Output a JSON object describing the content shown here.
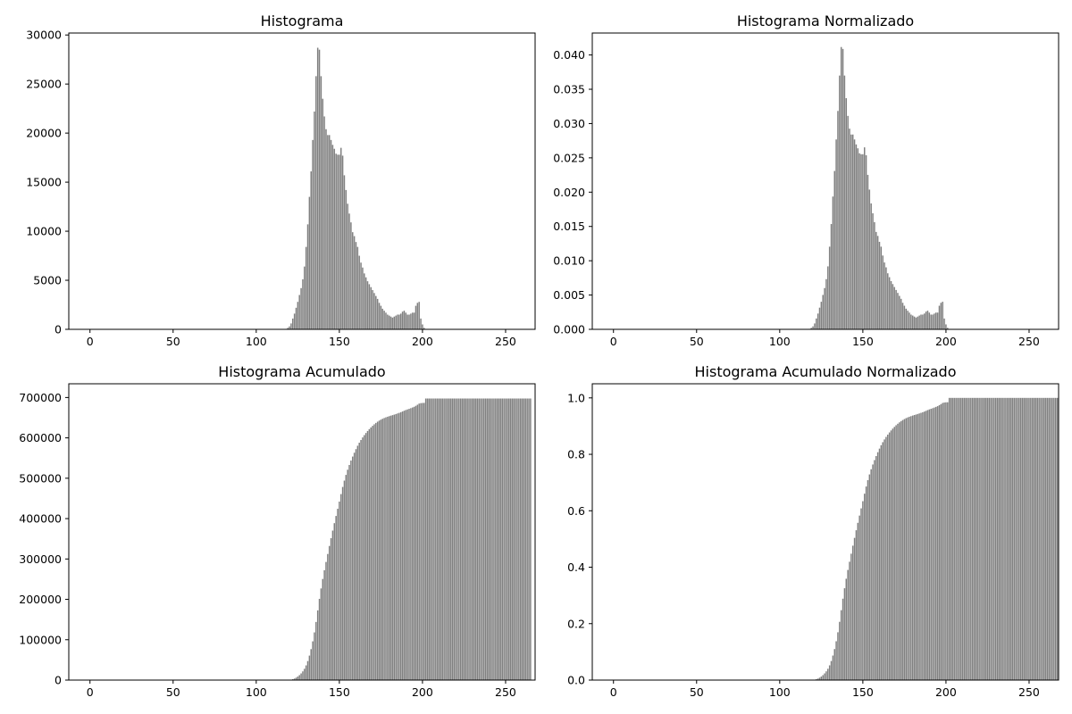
{
  "figure": {
    "bar_color": "#808080",
    "axes_color": "#000000",
    "background": "#ffffff"
  },
  "chart_data": [
    {
      "type": "bar",
      "title": "Histograma",
      "x_start": 0,
      "bar_width": 0.8,
      "xlim": [
        -12.75,
        267.75
      ],
      "ylim": [
        0,
        30200
      ],
      "x_ticks": [
        0,
        50,
        100,
        150,
        200,
        250
      ],
      "x_tick_labels": [
        "0",
        "50",
        "100",
        "150",
        "200",
        "250"
      ],
      "y_ticks": [
        0,
        5000,
        10000,
        15000,
        20000,
        25000,
        30000
      ],
      "y_tick_labels": [
        "0",
        "5000",
        "10000",
        "15000",
        "20000",
        "25000",
        "30000"
      ],
      "grid": false,
      "values": [
        0,
        0,
        0,
        0,
        0,
        0,
        0,
        0,
        0,
        0,
        0,
        0,
        0,
        0,
        0,
        0,
        0,
        0,
        0,
        0,
        0,
        0,
        0,
        0,
        0,
        0,
        0,
        0,
        0,
        0,
        0,
        0,
        0,
        0,
        0,
        0,
        0,
        0,
        0,
        0,
        0,
        0,
        0,
        0,
        0,
        0,
        0,
        0,
        0,
        0,
        0,
        0,
        0,
        0,
        0,
        0,
        0,
        0,
        0,
        0,
        0,
        0,
        0,
        0,
        0,
        0,
        0,
        0,
        0,
        0,
        0,
        0,
        0,
        0,
        0,
        0,
        0,
        0,
        0,
        0,
        0,
        0,
        0,
        0,
        0,
        0,
        0,
        0,
        0,
        0,
        0,
        0,
        0,
        0,
        0,
        0,
        0,
        0,
        0,
        0,
        0,
        0,
        0,
        0,
        0,
        0,
        0,
        0,
        0,
        0,
        0,
        0,
        0,
        0,
        0,
        0,
        0,
        0,
        50,
        150,
        300,
        600,
        1100,
        1600,
        2200,
        2800,
        3500,
        4200,
        5100,
        6400,
        8400,
        10700,
        13500,
        16100,
        19300,
        22200,
        25800,
        28700,
        28500,
        25800,
        23500,
        21700,
        20400,
        19800,
        19800,
        19300,
        18800,
        18400,
        17900,
        17800,
        17800,
        18500,
        17700,
        15700,
        14200,
        12800,
        11800,
        10900,
        9900,
        9500,
        8900,
        8400,
        7500,
        6800,
        6300,
        5700,
        5300,
        4900,
        4600,
        4300,
        4000,
        3700,
        3400,
        3100,
        2700,
        2400,
        2100,
        1900,
        1700,
        1500,
        1400,
        1300,
        1200,
        1300,
        1400,
        1500,
        1500,
        1600,
        1800,
        1900,
        1700,
        1500,
        1500,
        1600,
        1700,
        1700,
        2400,
        2700,
        2800,
        1100,
        500,
        150,
        0,
        0,
        0,
        0,
        0,
        0,
        0,
        0,
        0,
        0,
        0,
        0,
        0,
        0,
        0,
        0,
        0,
        0,
        0,
        0,
        0,
        0,
        0,
        0,
        0,
        0,
        0,
        0,
        0,
        0,
        0,
        0,
        0,
        0,
        0,
        0,
        0,
        0,
        0,
        0,
        0,
        0,
        0,
        0,
        0,
        0,
        0,
        0,
        0,
        0,
        0,
        0,
        0,
        0,
        0,
        0,
        0,
        0,
        0,
        0,
        0,
        0,
        0,
        0,
        0,
        0,
        0,
        0,
        0,
        0,
        0,
        0
      ]
    },
    {
      "type": "bar",
      "title": "Histograma Normalizado",
      "x_start": 0,
      "bar_width": 0.8,
      "xlim": [
        -12.75,
        267.75
      ],
      "ylim": [
        0,
        0.0432
      ],
      "x_ticks": [
        0,
        50,
        100,
        150,
        200,
        250
      ],
      "x_tick_labels": [
        "0",
        "50",
        "100",
        "150",
        "200",
        "250"
      ],
      "y_ticks": [
        0,
        0.005,
        0.01,
        0.015,
        0.02,
        0.025,
        0.03,
        0.035,
        0.04
      ],
      "y_tick_labels": [
        "0.000",
        "0.005",
        "0.010",
        "0.015",
        "0.020",
        "0.025",
        "0.030",
        "0.035",
        "0.040"
      ],
      "grid": false,
      "values": [
        0,
        0,
        0,
        0,
        0,
        0,
        0,
        0,
        0,
        0,
        0,
        0,
        0,
        0,
        0,
        0,
        0,
        0,
        0,
        0,
        0,
        0,
        0,
        0,
        0,
        0,
        0,
        0,
        0,
        0,
        0,
        0,
        0,
        0,
        0,
        0,
        0,
        0,
        0,
        0,
        0,
        0,
        0,
        0,
        0,
        0,
        0,
        0,
        0,
        0,
        0,
        0,
        0,
        0,
        0,
        0,
        0,
        0,
        0,
        0,
        0,
        0,
        0,
        0,
        0,
        0,
        0,
        0,
        0,
        0,
        0,
        0,
        0,
        0,
        0,
        0,
        0,
        0,
        0,
        0,
        0,
        0,
        0,
        0,
        0,
        0,
        0,
        0,
        0,
        0,
        0,
        0,
        0,
        0,
        0,
        0,
        0,
        0,
        0,
        0,
        0,
        0,
        0,
        0,
        0,
        0,
        0,
        0,
        0,
        0,
        0,
        0,
        0,
        0,
        0,
        0,
        0,
        0,
        7e-05,
        0.00021,
        0.00043,
        0.00086,
        0.00158,
        0.0023,
        0.00316,
        0.00402,
        0.00502,
        0.00602,
        0.00732,
        0.00918,
        0.01205,
        0.01535,
        0.01936,
        0.02309,
        0.02768,
        0.03184,
        0.037,
        0.04116,
        0.04088,
        0.037,
        0.0337,
        0.03112,
        0.02926,
        0.0284,
        0.0284,
        0.02768,
        0.02696,
        0.02639,
        0.02567,
        0.02553,
        0.02553,
        0.02653,
        0.02538,
        0.02252,
        0.02037,
        0.01836,
        0.01692,
        0.01563,
        0.0142,
        0.01362,
        0.01276,
        0.01205,
        0.01076,
        0.00975,
        0.00904,
        0.00817,
        0.0076,
        0.00703,
        0.0066,
        0.00617,
        0.00574,
        0.00531,
        0.00488,
        0.00445,
        0.00387,
        0.00344,
        0.00301,
        0.00272,
        0.00244,
        0.00215,
        0.00201,
        0.00186,
        0.00172,
        0.00186,
        0.00201,
        0.00215,
        0.00215,
        0.0023,
        0.00258,
        0.00272,
        0.00244,
        0.00215,
        0.00215,
        0.0023,
        0.00244,
        0.00244,
        0.00344,
        0.00387,
        0.00402,
        0.00158,
        0.00072,
        0.00022,
        0,
        0,
        0,
        0,
        0,
        0,
        0,
        0,
        0,
        0,
        0,
        0,
        0,
        0,
        0,
        0,
        0,
        0,
        0,
        0,
        0,
        0,
        0,
        0,
        0,
        0,
        0,
        0,
        0,
        0,
        0,
        0,
        0,
        0,
        0,
        0,
        0,
        0,
        0,
        0,
        0,
        0,
        0,
        0,
        0,
        0,
        0,
        0,
        0,
        0,
        0,
        0,
        0,
        0,
        0,
        0,
        0,
        0,
        0,
        0,
        0,
        0,
        0,
        0,
        0,
        0,
        0,
        0,
        0,
        0,
        0,
        0,
        0
      ]
    },
    {
      "type": "bar",
      "title": "Histograma Acumulado",
      "x_start": 0,
      "bar_width": 0.8,
      "xlim": [
        -12.75,
        267.75
      ],
      "ylim": [
        0,
        734000
      ],
      "x_ticks": [
        0,
        50,
        100,
        150,
        200,
        250
      ],
      "x_tick_labels": [
        "0",
        "50",
        "100",
        "150",
        "200",
        "250"
      ],
      "y_ticks": [
        0,
        100000,
        200000,
        300000,
        400000,
        500000,
        600000,
        700000
      ],
      "y_tick_labels": [
        "0",
        "100000",
        "200000",
        "300000",
        "400000",
        "500000",
        "600000",
        "700000"
      ],
      "grid": false,
      "values": [
        0,
        0,
        0,
        0,
        0,
        0,
        0,
        0,
        0,
        0,
        0,
        0,
        0,
        0,
        0,
        0,
        0,
        0,
        0,
        0,
        0,
        0,
        0,
        0,
        0,
        0,
        0,
        0,
        0,
        0,
        0,
        0,
        0,
        0,
        0,
        0,
        0,
        0,
        0,
        0,
        0,
        0,
        0,
        0,
        0,
        0,
        0,
        0,
        0,
        0,
        0,
        0,
        0,
        0,
        0,
        0,
        0,
        0,
        0,
        0,
        0,
        0,
        0,
        0,
        0,
        0,
        0,
        0,
        0,
        0,
        0,
        0,
        0,
        0,
        0,
        0,
        0,
        0,
        0,
        0,
        0,
        0,
        0,
        0,
        0,
        0,
        0,
        0,
        0,
        0,
        0,
        0,
        0,
        0,
        0,
        0,
        0,
        0,
        0,
        0,
        0,
        0,
        0,
        0,
        0,
        0,
        0,
        0,
        0,
        0,
        0,
        0,
        0,
        0,
        0,
        0,
        0,
        0,
        50,
        200,
        500,
        1100,
        2200,
        3800,
        6000,
        8800,
        12300,
        16500,
        21600,
        28000,
        36400,
        47100,
        60600,
        76700,
        96000,
        118200,
        144000,
        172700,
        201200,
        227000,
        250500,
        272200,
        292600,
        312400,
        332200,
        351500,
        370300,
        388700,
        406600,
        424400,
        442200,
        460700,
        478400,
        494100,
        508300,
        521100,
        532900,
        543800,
        553700,
        563200,
        572100,
        580500,
        588000,
        594800,
        601100,
        606800,
        612100,
        617000,
        621600,
        625900,
        629900,
        633600,
        637000,
        640100,
        642800,
        645200,
        647300,
        649200,
        650900,
        652400,
        653800,
        655100,
        656300,
        657600,
        659000,
        660500,
        662000,
        663600,
        665400,
        667300,
        669000,
        670500,
        672000,
        673600,
        675300,
        677000,
        679400,
        682100,
        684900,
        686000,
        686500,
        686650,
        697500,
        697500,
        697500,
        697500,
        697500,
        697500,
        697500,
        697500,
        697500,
        697500,
        697500,
        697500,
        697500,
        697500,
        697500,
        697500,
        697500,
        697500,
        697500,
        697500,
        697500,
        697500,
        697500,
        697500,
        697500,
        697500,
        697500,
        697500,
        697500,
        697500,
        697500,
        697500,
        697500,
        697500,
        697500,
        697500,
        697500,
        697500,
        697500,
        697500,
        697500,
        697500,
        697500,
        697500,
        697500,
        697500,
        697500,
        697500,
        697500,
        697500,
        697500,
        697500,
        697500,
        697500,
        697500,
        697500,
        697500,
        697500,
        697500,
        697500,
        697500,
        697500,
        697500,
        697500
      ]
    },
    {
      "type": "bar",
      "title": "Histograma Acumulado Normalizado",
      "x_start": 0,
      "bar_width": 0.8,
      "xlim": [
        -12.75,
        267.75
      ],
      "ylim": [
        0,
        1.05
      ],
      "x_ticks": [
        0,
        50,
        100,
        150,
        200,
        250
      ],
      "x_tick_labels": [
        "0",
        "50",
        "100",
        "150",
        "200",
        "250"
      ],
      "y_ticks": [
        0,
        0.2,
        0.4,
        0.6,
        0.8,
        1.0
      ],
      "y_tick_labels": [
        "0.0",
        "0.2",
        "0.4",
        "0.6",
        "0.8",
        "1.0"
      ],
      "grid": false,
      "values": [
        0,
        0,
        0,
        0,
        0,
        0,
        0,
        0,
        0,
        0,
        0,
        0,
        0,
        0,
        0,
        0,
        0,
        0,
        0,
        0,
        0,
        0,
        0,
        0,
        0,
        0,
        0,
        0,
        0,
        0,
        0,
        0,
        0,
        0,
        0,
        0,
        0,
        0,
        0,
        0,
        0,
        0,
        0,
        0,
        0,
        0,
        0,
        0,
        0,
        0,
        0,
        0,
        0,
        0,
        0,
        0,
        0,
        0,
        0,
        0,
        0,
        0,
        0,
        0,
        0,
        0,
        0,
        0,
        0,
        0,
        0,
        0,
        0,
        0,
        0,
        0,
        0,
        0,
        0,
        0,
        0,
        0,
        0,
        0,
        0,
        0,
        0,
        0,
        0,
        0,
        0,
        0,
        0,
        0,
        0,
        0,
        0,
        0,
        0,
        0,
        0,
        0,
        0,
        0,
        0,
        0,
        0,
        0,
        0,
        0,
        0,
        0,
        0,
        0,
        0,
        0,
        0,
        0,
        0.0001,
        0.0003,
        0.0007,
        0.0016,
        0.0032,
        0.0054,
        0.0086,
        0.0126,
        0.0176,
        0.0237,
        0.031,
        0.0401,
        0.0522,
        0.0675,
        0.0869,
        0.11,
        0.1376,
        0.1695,
        0.2065,
        0.2476,
        0.2885,
        0.3254,
        0.3591,
        0.3903,
        0.4194,
        0.4479,
        0.4763,
        0.5039,
        0.5309,
        0.5573,
        0.583,
        0.6085,
        0.6339,
        0.6605,
        0.6859,
        0.7084,
        0.7287,
        0.7471,
        0.764,
        0.7796,
        0.7938,
        0.8075,
        0.8202,
        0.8323,
        0.843,
        0.8528,
        0.8618,
        0.8699,
        0.8775,
        0.8846,
        0.8912,
        0.8973,
        0.9031,
        0.9084,
        0.9133,
        0.9177,
        0.9216,
        0.925,
        0.9281,
        0.9308,
        0.9332,
        0.9354,
        0.9374,
        0.9393,
        0.941,
        0.9429,
        0.9449,
        0.947,
        0.9492,
        0.9515,
        0.9541,
        0.9568,
        0.9592,
        0.9613,
        0.9635,
        0.9658,
        0.9682,
        0.9707,
        0.9741,
        0.978,
        0.982,
        0.9836,
        0.9843,
        0.9845,
        1,
        1,
        1,
        1,
        1,
        1,
        1,
        1,
        1,
        1,
        1,
        1,
        1,
        1,
        1,
        1,
        1,
        1,
        1,
        1,
        1,
        1,
        1,
        1,
        1,
        1,
        1,
        1,
        1,
        1,
        1,
        1,
        1,
        1,
        1,
        1,
        1,
        1,
        1,
        1,
        1,
        1,
        1,
        1,
        1,
        1,
        1,
        1,
        1,
        1,
        1,
        1,
        1,
        1,
        1,
        1,
        1,
        1,
        1,
        1,
        1,
        1,
        1,
        1,
        1,
        1
      ]
    }
  ]
}
